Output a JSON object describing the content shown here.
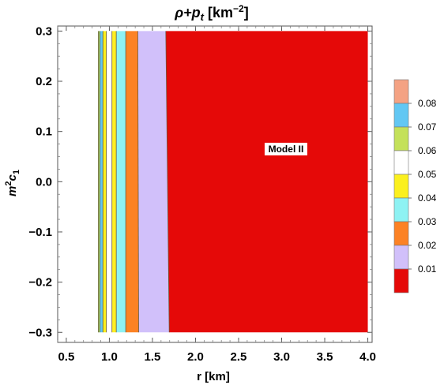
{
  "chart_data": {
    "type": "contour",
    "title": "ρ+p_t [km⁻²]",
    "title_main": "ρ+p",
    "title_sub": "t",
    "title_unit": " [km",
    "title_exp": "−2",
    "title_close": "]",
    "xlabel": "r [km]",
    "ylabel_base": "m",
    "ylabel_sup": "2",
    "ylabel_mid": "c",
    "ylabel_sub": "1",
    "xlim": [
      0.4,
      4.05
    ],
    "ylim": [
      -0.32,
      0.31
    ],
    "xticks": [
      0.5,
      1.0,
      1.5,
      2.0,
      2.5,
      3.0,
      3.5,
      4.0
    ],
    "xtick_labels": [
      "0.5",
      "1.0",
      "1.5",
      "2.0",
      "2.5",
      "3.0",
      "3.5",
      "4.0"
    ],
    "yticks": [
      -0.3,
      -0.2,
      -0.1,
      0.0,
      0.1,
      0.2,
      0.3
    ],
    "ytick_labels": [
      "−0.3",
      "−0.2",
      "−0.1",
      "0.0",
      "0.1",
      "0.2",
      "0.3"
    ],
    "region_x": [
      0.4,
      4.0
    ],
    "region_y": [
      -0.3,
      0.3
    ],
    "bands": [
      {
        "color": "#ffffff",
        "x_top": [
          0.4,
          0.872
        ],
        "x_bottom": [
          0.4,
          0.872
        ]
      },
      {
        "color": "#a5e16a",
        "x_top": [
          0.872,
          0.89
        ],
        "x_bottom": [
          0.872,
          0.89
        ]
      },
      {
        "color": "#62c7f3",
        "x_top": [
          0.89,
          0.925
        ],
        "x_bottom": [
          0.89,
          0.925
        ]
      },
      {
        "color": "#fbf01e",
        "x_top": [
          0.925,
          0.965
        ],
        "x_bottom": [
          0.925,
          0.965
        ]
      },
      {
        "color": "#ffffff",
        "x_top": [
          0.965,
          1.03
        ],
        "x_bottom": [
          0.965,
          1.03
        ]
      },
      {
        "color": "#ffee22",
        "x_top": [
          1.03,
          1.08
        ],
        "x_bottom": [
          1.03,
          1.08
        ]
      },
      {
        "color": "#8ef2f3",
        "x_top": [
          1.08,
          1.19
        ],
        "x_bottom": [
          1.08,
          1.19
        ]
      },
      {
        "color": "#fc8224",
        "x_top": [
          1.19,
          1.33
        ],
        "x_bottom": [
          1.19,
          1.34
        ]
      },
      {
        "color": "#d1c0fa",
        "x_top": [
          1.33,
          1.655
        ],
        "x_bottom": [
          1.34,
          1.695
        ]
      },
      {
        "color": "#e50908",
        "x_top": [
          1.655,
          4.0
        ],
        "x_bottom": [
          1.695,
          4.0
        ]
      }
    ],
    "annotation": "Model II",
    "annotation_x": 3.05,
    "annotation_y": 0.065,
    "legend_placement": "right",
    "legend_items": [
      {
        "color": "#f4a283",
        "label": "0.08"
      },
      {
        "color": "#62c7f3",
        "label": "0.07"
      },
      {
        "color": "#c4e15a",
        "label": "0.06"
      },
      {
        "color": "#ffffff",
        "label": "0.05"
      },
      {
        "color": "#fbf01e",
        "label": "0.04"
      },
      {
        "color": "#8ef2f3",
        "label": "0.03"
      },
      {
        "color": "#fc8224",
        "label": "0.02"
      },
      {
        "color": "#d1c0fa",
        "label": "0.01"
      },
      {
        "color": "#e50908",
        "label": ""
      }
    ]
  }
}
